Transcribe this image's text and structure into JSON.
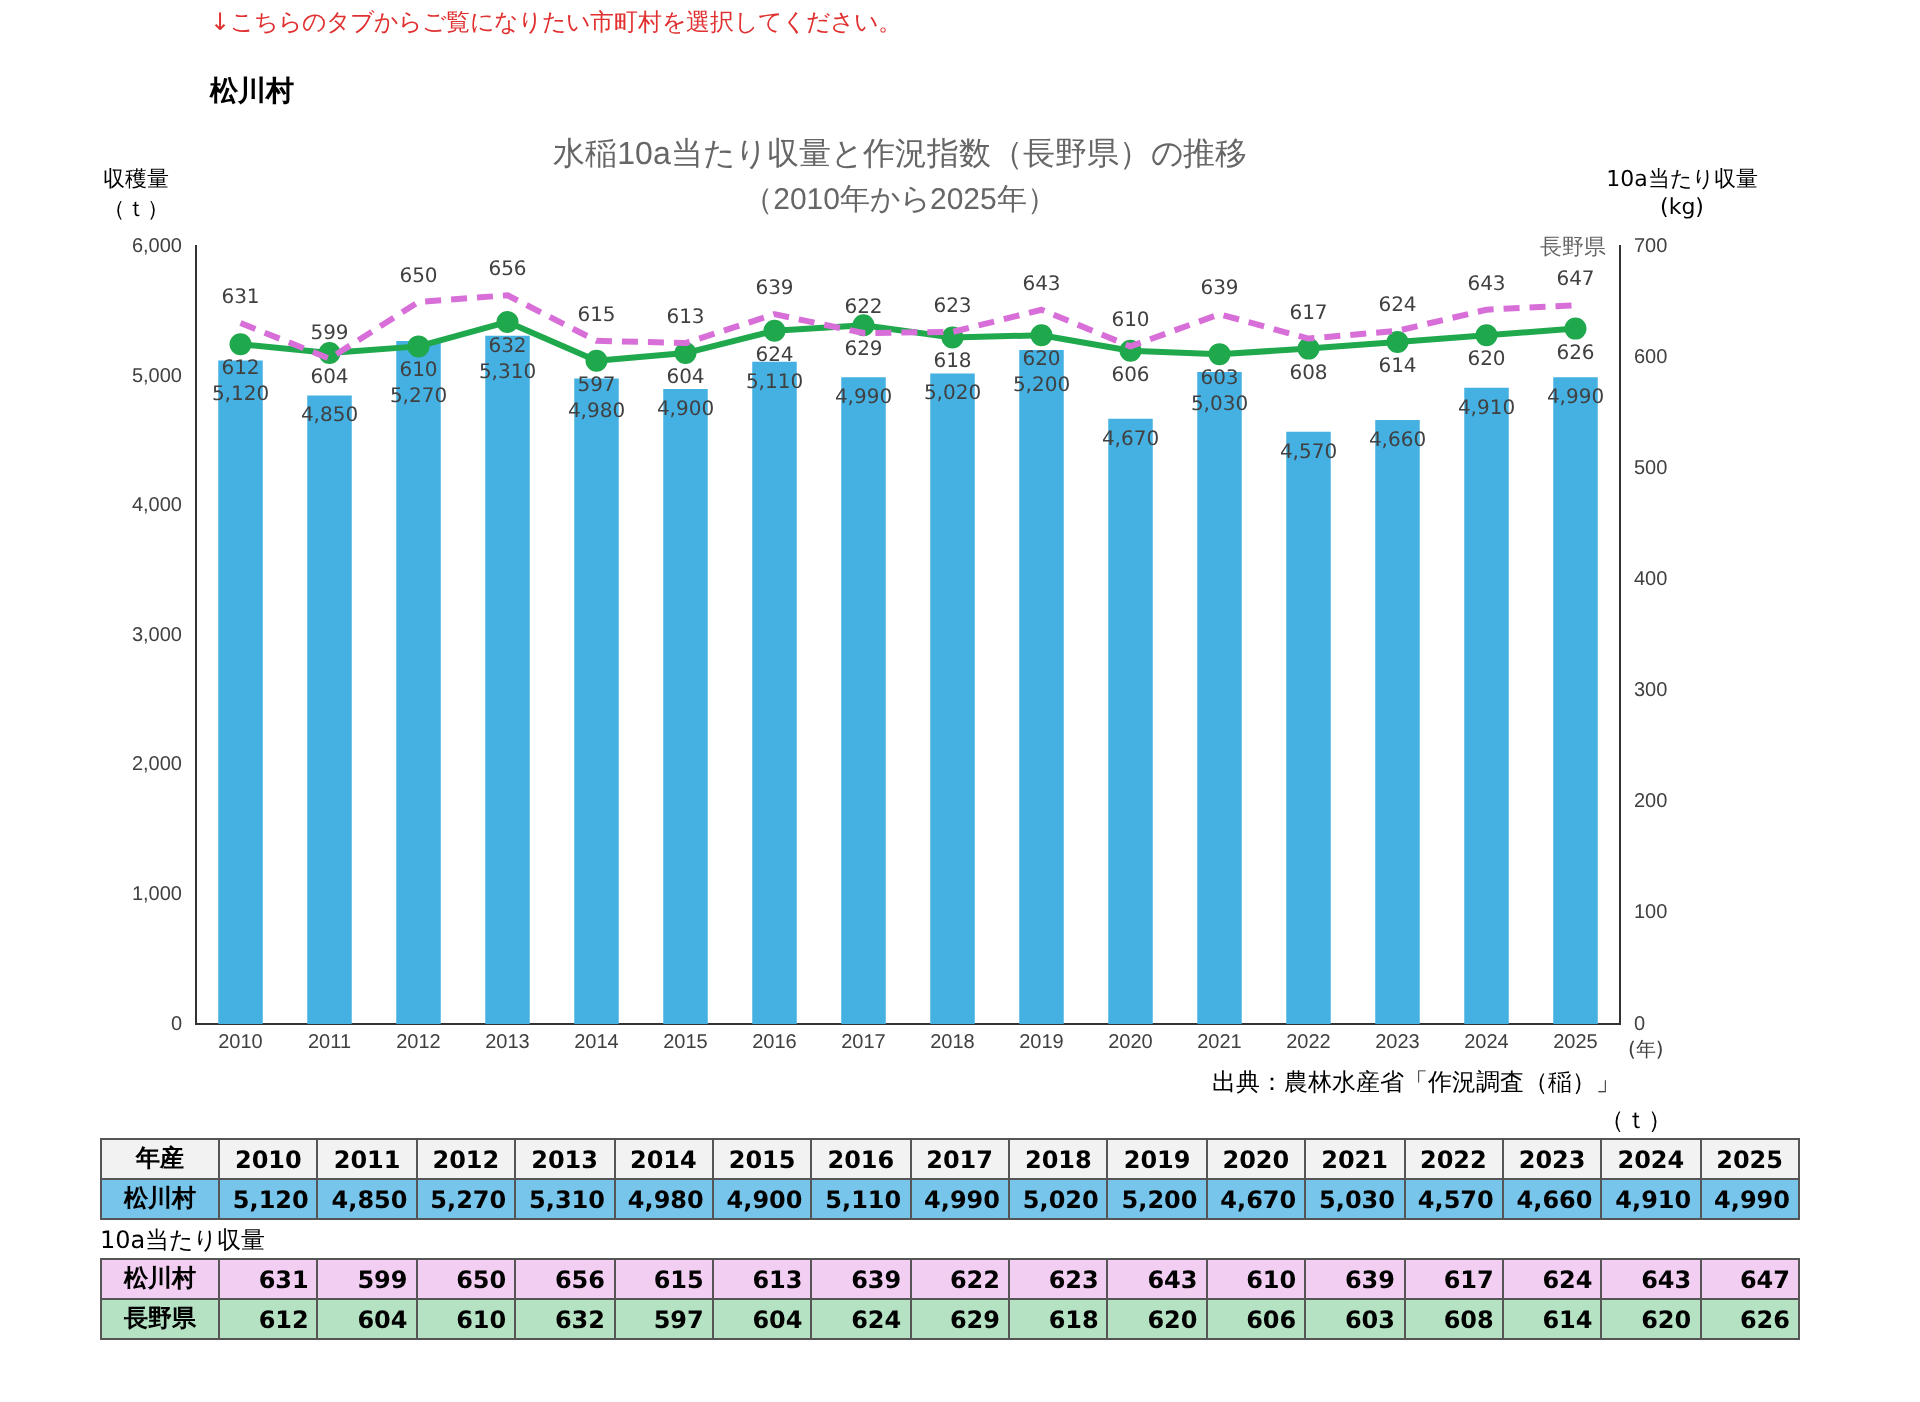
{
  "chart_data": {
    "type": "bar",
    "title": "水稲10a当たり収量と作況指数（長野県）の推移",
    "subtitle": "（2010年から2025年）",
    "ylabel": "収穫量（ｔ）",
    "y2label": "10a当たり収量(kg)",
    "xlabel": "(年)",
    "categories": [
      "2010",
      "2011",
      "2012",
      "2013",
      "2014",
      "2015",
      "2016",
      "2017",
      "2018",
      "2019",
      "2020",
      "2021",
      "2022",
      "2023",
      "2024",
      "2025"
    ],
    "series": [
      {
        "name": "松川村",
        "color": "#45b0e2",
        "values": [
          5120,
          4850,
          5270,
          5310,
          4980,
          4900,
          5110,
          4990,
          5020,
          5200,
          4670,
          5030,
          4570,
          4660,
          4910,
          4990
        ],
        "value_labels": [
          "5,120",
          "4,850",
          "5,270",
          "5,310",
          "4,980",
          "4,900",
          "5,110",
          "4,990",
          "5,020",
          "5,200",
          "4,670",
          "5,030",
          "4,570",
          "4,660",
          "4,910",
          "4,990"
        ]
      },
      {
        "name": "松川村",
        "type": "line",
        "axis": "y2",
        "color": "#d86fd8",
        "line_style": "dashed",
        "marker": "none",
        "values": [
          631,
          599,
          650,
          656,
          615,
          613,
          639,
          622,
          623,
          643,
          610,
          639,
          617,
          624,
          643,
          647
        ],
        "value_labels": [
          "631",
          "599",
          "650",
          "656",
          "615",
          "613",
          "639",
          "622",
          "623",
          "643",
          "610",
          "639",
          "617",
          "624",
          "643",
          "647"
        ]
      },
      {
        "name": "長野県",
        "type": "line",
        "axis": "y2",
        "color": "#1fa84c",
        "line_style": "solid",
        "marker": "circle",
        "values": [
          612,
          604,
          610,
          632,
          597,
          604,
          624,
          629,
          618,
          620,
          606,
          603,
          608,
          614,
          620,
          626
        ],
        "value_labels": [
          "612",
          "604",
          "610",
          "632",
          "597",
          "604",
          "624",
          "629",
          "618",
          "620",
          "606",
          "603",
          "608",
          "614",
          "620",
          "626"
        ]
      }
    ],
    "ylim": [
      0,
      6000
    ],
    "yticks": [
      0,
      {
        "value": 1000,
        "label": "1,000"
      },
      {
        "value": 2000,
        "label": "2,000"
      },
      {
        "value": 3000,
        "label": "3,000"
      },
      {
        "value": 4000,
        "label": "4,000"
      },
      {
        "value": 5000,
        "label": "5,000"
      },
      {
        "value": 6000,
        "label": "6,000"
      }
    ],
    "y2lim": [
      0,
      700
    ],
    "y2ticks": [
      0,
      100,
      200,
      300,
      400,
      500,
      600,
      700
    ],
    "grid": false,
    "legend": "bottom",
    "annotations": [
      "↓こちらのタブからご覧になりたい市町村を選択してください。",
      "松川村",
      "長野県",
      "出典：農林水産省「作況調査（稲）」",
      "（ｔ）",
      "10a当たり収量",
      "年産"
    ]
  }
}
